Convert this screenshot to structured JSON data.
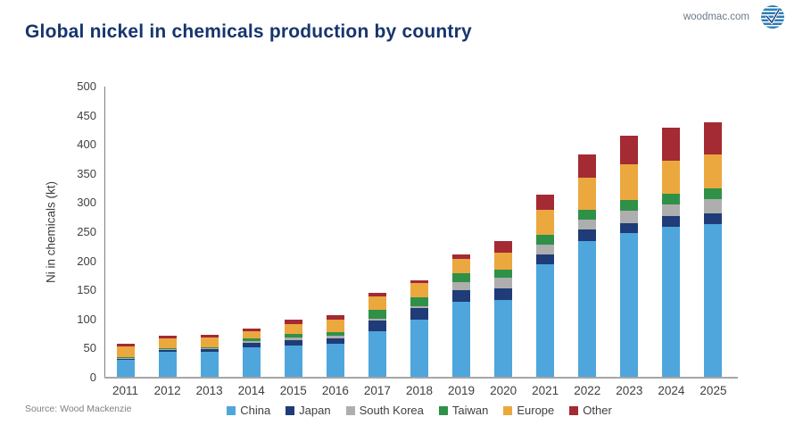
{
  "header": {
    "title": "Global nickel in chemicals production by country",
    "site_link": "woodmac.com",
    "logo_icon": "woodmac-logo"
  },
  "chart_data": {
    "type": "bar",
    "stacked": true,
    "title": "Global nickel in chemicals production by country",
    "xlabel": "",
    "ylabel": "Ni in chemicals (kt)",
    "ylim": [
      0,
      500
    ],
    "yticks": [
      0,
      50,
      100,
      150,
      200,
      250,
      300,
      350,
      400,
      450,
      500
    ],
    "grid": false,
    "legend_position": "bottom",
    "categories": [
      "2011",
      "2012",
      "2013",
      "2014",
      "2015",
      "2016",
      "2017",
      "2018",
      "2019",
      "2020",
      "2021",
      "2022",
      "2023",
      "2024",
      "2025"
    ],
    "series": [
      {
        "name": "China",
        "color": "#4EA6DC",
        "values": [
          30,
          44,
          45,
          52,
          56,
          59,
          80,
          100,
          130,
          133,
          195,
          235,
          248,
          259,
          264
        ]
      },
      {
        "name": "Japan",
        "color": "#1F3C78",
        "values": [
          3,
          4,
          4,
          8,
          9,
          9,
          18,
          19,
          21,
          21,
          17,
          19,
          18,
          18,
          19
        ]
      },
      {
        "name": "South Korea",
        "color": "#AEAEAE",
        "values": [
          1,
          1,
          1,
          3,
          4,
          4,
          4,
          4,
          13,
          18,
          16,
          17,
          21,
          21,
          24
        ]
      },
      {
        "name": "Taiwan",
        "color": "#2F9148",
        "values": [
          1,
          1,
          2,
          4,
          6,
          7,
          14,
          15,
          15,
          14,
          18,
          18,
          19,
          18,
          18
        ]
      },
      {
        "name": "Europe",
        "color": "#EBA83E",
        "values": [
          19,
          17,
          17,
          13,
          17,
          20,
          23,
          24,
          25,
          29,
          43,
          54,
          60,
          57,
          59
        ]
      },
      {
        "name": "Other",
        "color": "#A42A33",
        "values": [
          5,
          5,
          5,
          5,
          8,
          9,
          6,
          6,
          8,
          19,
          25,
          41,
          50,
          56,
          55
        ]
      }
    ]
  },
  "footer": {
    "source": "Source: Wood Mackenzie"
  }
}
